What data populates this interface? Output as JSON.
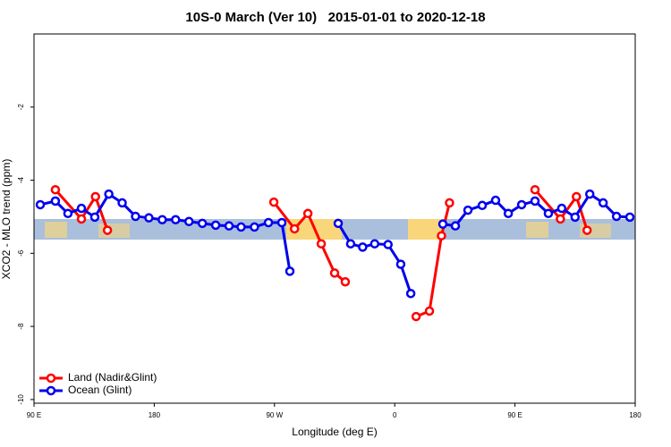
{
  "chart_data": {
    "type": "line",
    "title": "10S-0 March (Ver 10)   2015-01-01 to 2020-12-18",
    "x_label": "Longitude (deg E)",
    "y_label": "XCO2 - MLO trend (ppm)",
    "xlim": [
      90,
      540
    ],
    "ylim": [
      -10.1,
      0
    ],
    "xticks": [
      {
        "value": 90,
        "label": "90 E"
      },
      180,
      {
        "value": 270,
        "label": "90 W"
      },
      {
        "value": 360,
        "label": "0"
      },
      {
        "value": 450,
        "label": "90 E"
      },
      {
        "value": 540,
        "label": "180"
      }
    ],
    "yticks": [
      -10,
      -8,
      -6,
      -4,
      -2
    ],
    "legend": "bottom-left",
    "series": [
      {
        "name": "Land (Nadir&Glint)",
        "color": "#ff0000",
        "x": [
          106,
          125.5,
          136,
          145,
          null,
          269.5,
          285,
          295,
          305,
          315,
          323,
          null,
          376,
          386,
          395,
          401,
          null,
          465,
          484,
          496,
          504
        ],
        "values": [
          -4.26,
          -5.06,
          -4.45,
          -5.37,
          null,
          -4.6,
          -5.33,
          -4.91,
          -5.74,
          -6.54,
          -6.78,
          null,
          -7.73,
          -7.58,
          -5.52,
          -4.62,
          null,
          -4.26,
          -5.06,
          -4.45,
          -5.37
        ]
      },
      {
        "name": "Ocean (Glint)",
        "color": "#0000ee",
        "x": [
          94.7,
          106,
          115.4,
          125.5,
          135.5,
          146,
          156,
          166,
          176,
          186,
          196,
          206,
          216,
          226,
          236,
          245,
          255,
          265.5,
          275.5,
          281.5,
          null,
          317.7,
          327,
          336,
          345,
          355,
          364.5,
          372,
          null,
          396,
          405.4,
          414.8,
          425.5,
          435.5,
          445,
          455,
          465,
          475,
          485,
          495,
          506,
          516,
          526,
          536
        ],
        "values": [
          -4.67,
          -4.57,
          -4.91,
          -4.77,
          -5.01,
          -4.38,
          -4.62,
          -4.99,
          -5.03,
          -5.08,
          -5.08,
          -5.13,
          -5.18,
          -5.23,
          -5.25,
          -5.28,
          -5.28,
          -5.16,
          -5.16,
          -6.49,
          null,
          -5.18,
          -5.74,
          -5.83,
          -5.74,
          -5.76,
          -6.3,
          -7.1,
          null,
          -5.2,
          -5.25,
          -4.82,
          -4.69,
          -4.55,
          -4.91,
          -4.67,
          -4.57,
          -4.91,
          -4.77,
          -5.01,
          -4.38,
          -4.62,
          -4.99,
          -5.01
        ]
      }
    ]
  }
}
